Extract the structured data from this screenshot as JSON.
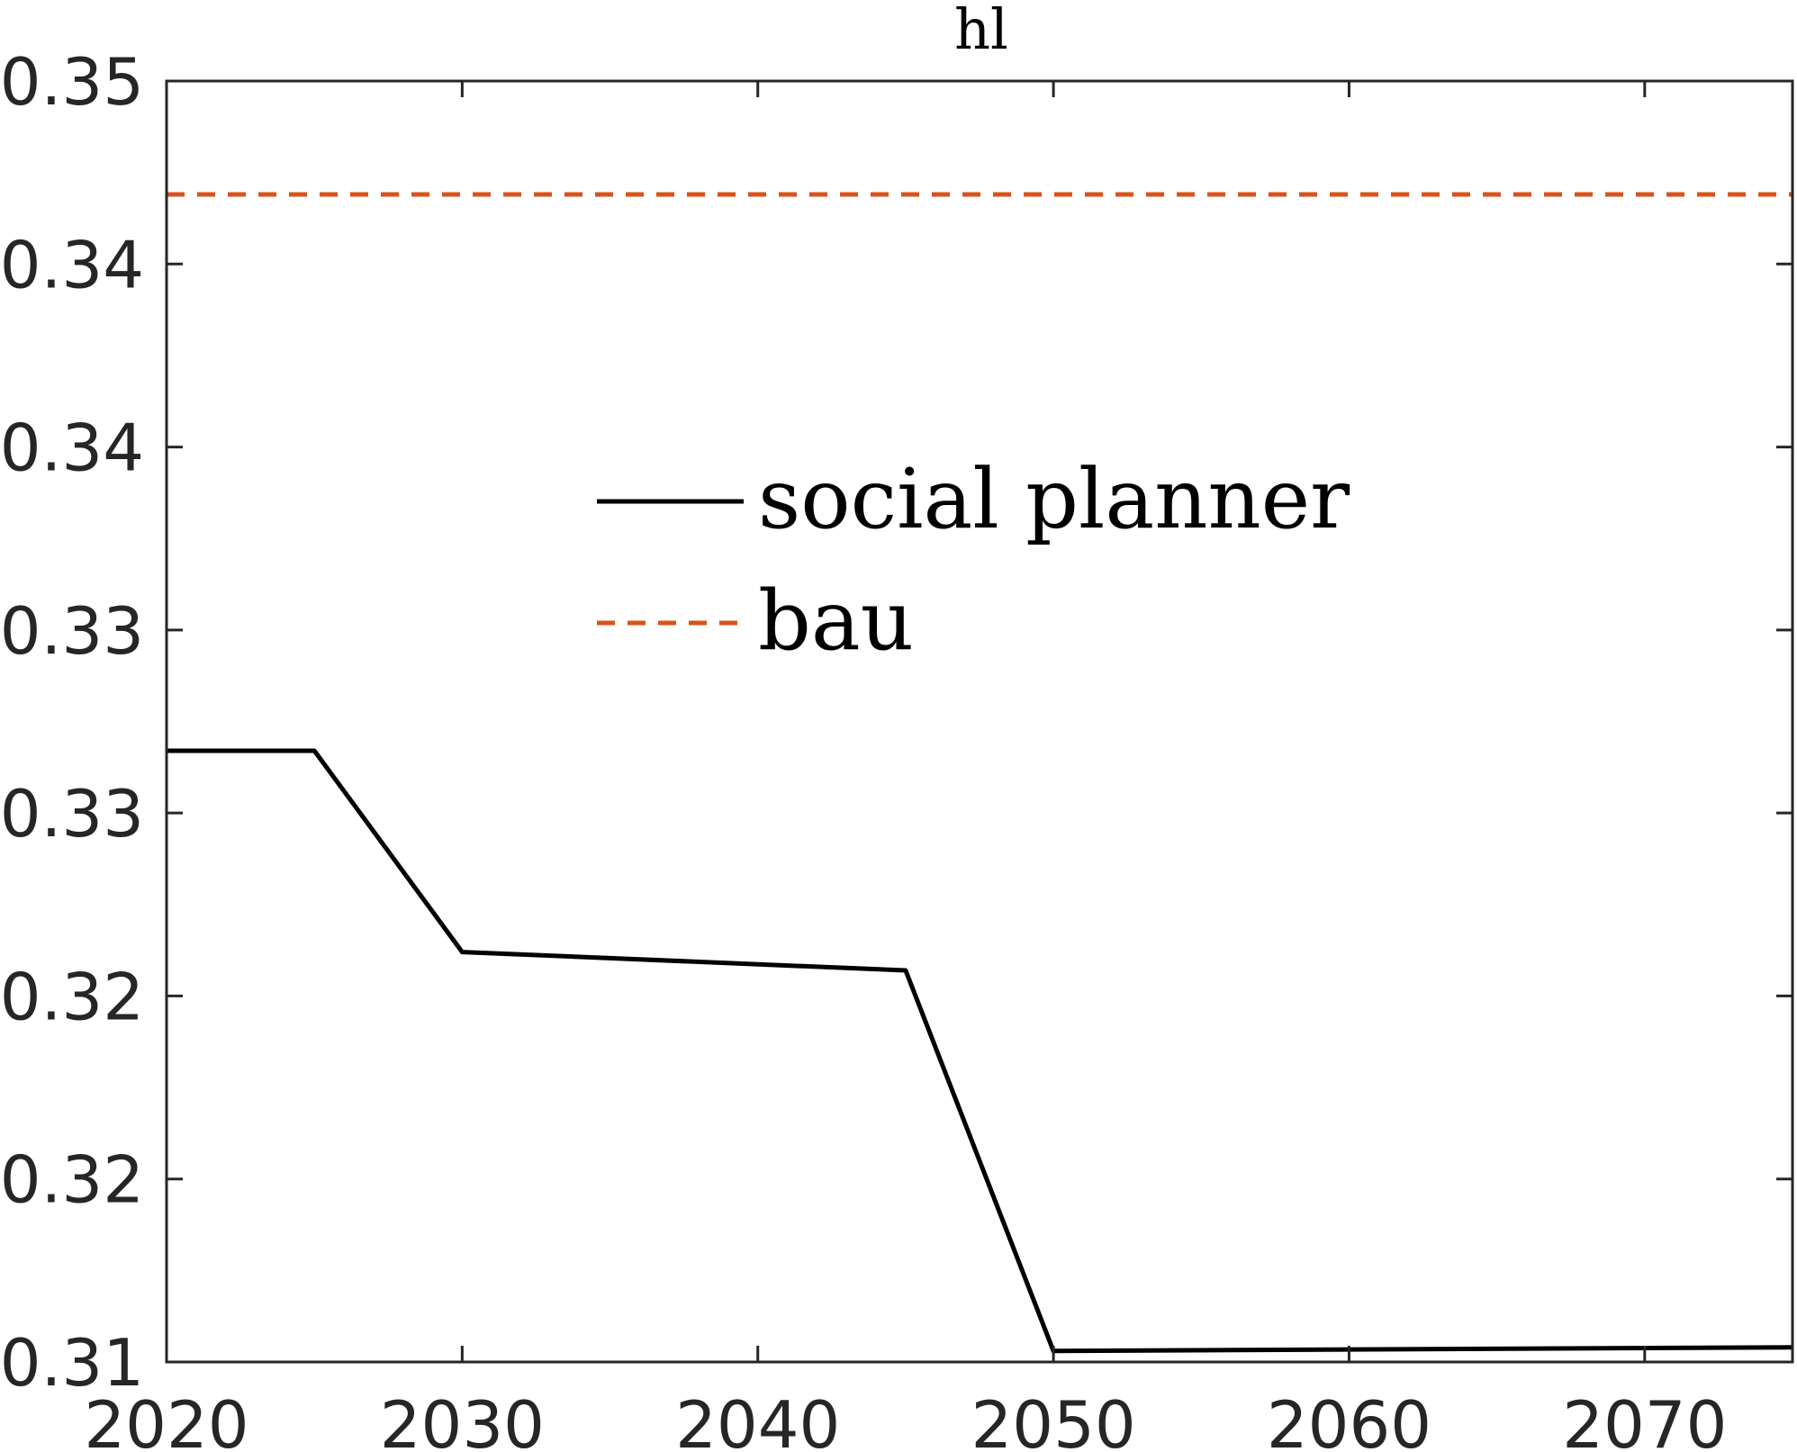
{
  "chart_data": {
    "type": "line",
    "title": "hl",
    "xlabel": "",
    "ylabel": "",
    "xlim": [
      2020,
      2075
    ],
    "ylim": [
      0.31,
      0.345
    ],
    "x_ticks": [
      2020,
      2030,
      2040,
      2050,
      2060,
      2070
    ],
    "x_tick_labels": [
      "2020",
      "2030",
      "2040",
      "2050",
      "2060",
      "2070"
    ],
    "y_ticks": [
      0.31,
      0.315,
      0.32,
      0.325,
      0.33,
      0.335,
      0.34,
      0.345
    ],
    "y_tick_labels": [
      "0.31",
      "0.32",
      "0.32",
      "0.33",
      "0.33",
      "0.34",
      "0.34",
      "0.35"
    ],
    "grid": false,
    "legend_position": "center",
    "series": [
      {
        "name": "social planner",
        "color": "#000000",
        "dash": "solid",
        "x": [
          2020,
          2025,
          2030,
          2045,
          2050,
          2075
        ],
        "y": [
          0.3267,
          0.3267,
          0.3212,
          0.3207,
          0.3103,
          0.3104
        ]
      },
      {
        "name": "bau",
        "color": "#D95319",
        "dash": "dashed",
        "x": [
          2020,
          2075
        ],
        "y": [
          0.3419,
          0.3419
        ]
      }
    ]
  }
}
